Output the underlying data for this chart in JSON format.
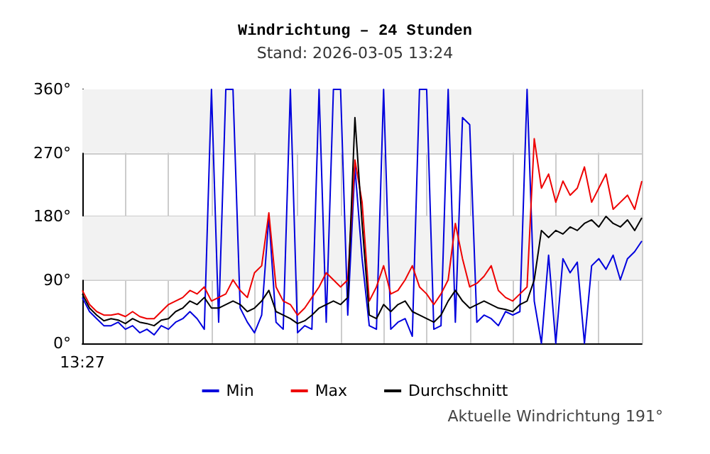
{
  "chart_data": {
    "type": "line",
    "title": "Windrichtung – 24 Stunden",
    "subtitle": "Stand: 2026-03-05 13:24",
    "annotations": [
      "Aktuelle Windrichtung 191°"
    ],
    "categories": [
      "13:27",
      null,
      null,
      null,
      null,
      null,
      null,
      null,
      null,
      null,
      null,
      null,
      null,
      null,
      null,
      null,
      null,
      null,
      null,
      null,
      null,
      null,
      null,
      null,
      null,
      null,
      null,
      null,
      null,
      null,
      null,
      null,
      null,
      null,
      null,
      null,
      null,
      null,
      null,
      null,
      null,
      null,
      null,
      null,
      null,
      null,
      null,
      null,
      null,
      null,
      null,
      null,
      null,
      null,
      null,
      null,
      null,
      null,
      null,
      null,
      null,
      null,
      null,
      null,
      null,
      null,
      null,
      null,
      null,
      null,
      null,
      null,
      null,
      null,
      null,
      null,
      null,
      null,
      null
    ],
    "series": [
      {
        "name": "Min",
        "color": "#0000dd",
        "values": [
          65,
          45,
          35,
          25,
          25,
          30,
          20,
          25,
          15,
          20,
          12,
          25,
          20,
          30,
          35,
          45,
          35,
          20,
          360,
          30,
          360,
          360,
          50,
          30,
          15,
          40,
          180,
          30,
          20,
          360,
          15,
          25,
          20,
          360,
          30,
          360,
          360,
          40,
          250,
          120,
          25,
          20,
          360,
          20,
          30,
          35,
          10,
          360,
          360,
          20,
          25,
          360,
          30,
          320,
          310,
          30,
          40,
          35,
          25,
          45,
          40,
          45,
          360,
          60,
          0,
          125,
          0,
          120,
          100,
          115,
          0,
          110,
          120,
          105,
          125,
          90,
          120,
          130,
          145
        ]
      },
      {
        "name": "Max",
        "color": "#ee0000",
        "values": [
          75,
          55,
          45,
          40,
          40,
          42,
          38,
          45,
          38,
          35,
          35,
          45,
          55,
          60,
          65,
          75,
          70,
          80,
          60,
          65,
          70,
          90,
          75,
          65,
          100,
          110,
          185,
          80,
          60,
          55,
          40,
          50,
          65,
          80,
          100,
          90,
          80,
          90,
          260,
          200,
          60,
          80,
          110,
          70,
          75,
          90,
          110,
          80,
          70,
          55,
          70,
          90,
          170,
          120,
          80,
          85,
          95,
          110,
          75,
          65,
          60,
          70,
          80,
          290,
          220,
          240,
          200,
          230,
          210,
          220,
          250,
          200,
          220,
          240,
          190,
          200,
          210,
          190,
          230
        ]
      },
      {
        "name": "Durchschnitt",
        "color": "#000000",
        "values": [
          70,
          50,
          40,
          32,
          35,
          33,
          28,
          35,
          30,
          28,
          25,
          33,
          35,
          45,
          50,
          60,
          55,
          65,
          50,
          50,
          55,
          60,
          55,
          45,
          50,
          60,
          75,
          45,
          40,
          35,
          28,
          32,
          40,
          50,
          55,
          60,
          55,
          65,
          320,
          170,
          40,
          35,
          55,
          45,
          55,
          60,
          45,
          40,
          35,
          30,
          40,
          60,
          75,
          60,
          50,
          55,
          60,
          55,
          50,
          48,
          45,
          55,
          60,
          90,
          160,
          150,
          160,
          155,
          165,
          160,
          170,
          175,
          165,
          180,
          170,
          165,
          175,
          160,
          178
        ]
      }
    ],
    "ylim": [
      0,
      360
    ],
    "yticks": [
      {
        "value": 0,
        "label": "0°"
      },
      {
        "value": 90,
        "label": "90°"
      },
      {
        "value": 180,
        "label": "180°"
      },
      {
        "value": 270,
        "label": "270°"
      },
      {
        "value": 360,
        "label": "360°"
      }
    ],
    "bands": [
      {
        "axis": "y",
        "from": 90,
        "to": 180,
        "color": "#f2f2f2"
      },
      {
        "axis": "y",
        "from": 270,
        "to": 360,
        "color": "#f2f2f2"
      }
    ],
    "grid": true,
    "legend": "bottom",
    "marker": "none",
    "line_style": "solid"
  }
}
